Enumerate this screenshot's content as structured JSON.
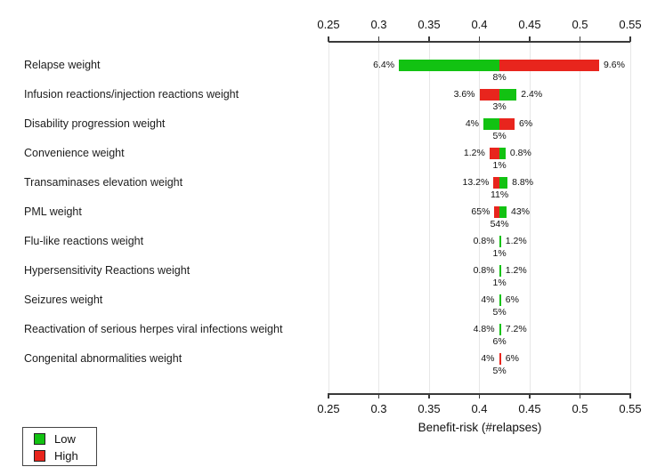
{
  "chart_data": {
    "type": "bar",
    "variant": "tornado-sensitivity",
    "title": "",
    "xlabel": "Benefit-risk (#relapses)",
    "ylabel": "",
    "xlim": [
      0.25,
      0.55
    ],
    "x_ticks": [
      "0.25",
      "0.3",
      "0.35",
      "0.4",
      "0.45",
      "0.5",
      "0.55"
    ],
    "x_tick_values": [
      0.25,
      0.3,
      0.35,
      0.4,
      0.45,
      0.5,
      0.55
    ],
    "base_value": 0.42,
    "grid": true,
    "legend_position": "bottom-left",
    "colors": {
      "green": "#12c212",
      "red": "#e8251d"
    },
    "legend": [
      {
        "label": "Low",
        "color_key": "green"
      },
      {
        "label": "High",
        "color_key": "red"
      }
    ],
    "rows": [
      {
        "label": "Relapse weight",
        "left_text": "6.4%",
        "right_text": "9.6%",
        "base_text": "8%",
        "x_left": 0.32,
        "x_right": 0.519,
        "left_color": "green",
        "right_color": "red"
      },
      {
        "label": "Infusion reactions/injection reactions weight",
        "left_text": "3.6%",
        "right_text": "2.4%",
        "base_text": "3%",
        "x_left": 0.4,
        "x_right": 0.437,
        "left_color": "red",
        "right_color": "green"
      },
      {
        "label": "Disability progression weight",
        "left_text": "4%",
        "right_text": "6%",
        "base_text": "5%",
        "x_left": 0.404,
        "x_right": 0.435,
        "left_color": "green",
        "right_color": "red"
      },
      {
        "label": "Convenience weight",
        "left_text": "1.2%",
        "right_text": "0.8%",
        "base_text": "1%",
        "x_left": 0.41,
        "x_right": 0.426,
        "left_color": "red",
        "right_color": "green"
      },
      {
        "label": "Transaminases elevation weight",
        "left_text": "13.2%",
        "right_text": "8.8%",
        "base_text": "11%",
        "x_left": 0.414,
        "x_right": 0.428,
        "left_color": "red",
        "right_color": "green"
      },
      {
        "label": "PML weight",
        "left_text": "65%",
        "right_text": "43%",
        "base_text": "54%",
        "x_left": 0.415,
        "x_right": 0.427,
        "left_color": "red",
        "right_color": "green"
      },
      {
        "label": "Flu-like reactions weight",
        "left_text": "0.8%",
        "right_text": "1.2%",
        "base_text": "1%",
        "x_left": 0.4195,
        "x_right": 0.4215,
        "left_color": "green",
        "right_color": "green"
      },
      {
        "label": "Hypersensitivity Reactions weight",
        "left_text": "0.8%",
        "right_text": "1.2%",
        "base_text": "1%",
        "x_left": 0.4195,
        "x_right": 0.4215,
        "left_color": "green",
        "right_color": "green"
      },
      {
        "label": "Seizures weight",
        "left_text": "4%",
        "right_text": "6%",
        "base_text": "5%",
        "x_left": 0.4195,
        "x_right": 0.4215,
        "left_color": "green",
        "right_color": "green"
      },
      {
        "label": "Reactivation of serious herpes viral infections weight",
        "left_text": "4.8%",
        "right_text": "7.2%",
        "base_text": "6%",
        "x_left": 0.4195,
        "x_right": 0.4215,
        "left_color": "green",
        "right_color": "green"
      },
      {
        "label": "Congenital abnormalities weight",
        "left_text": "4%",
        "right_text": "6%",
        "base_text": "5%",
        "x_left": 0.4195,
        "x_right": 0.4215,
        "left_color": "red",
        "right_color": "red"
      }
    ]
  }
}
